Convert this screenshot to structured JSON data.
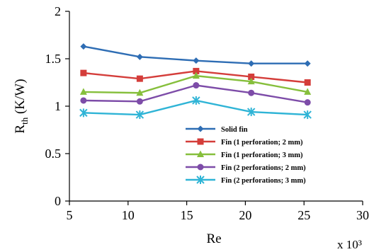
{
  "chart_data": {
    "type": "line",
    "title": "",
    "xlabel": "Re",
    "x_multiplier": "x 10³",
    "ylabel_main": "R",
    "ylabel_sub": "th",
    "ylabel_unit": " (K/W)",
    "xlim": [
      5,
      30
    ],
    "ylim": [
      0,
      2
    ],
    "xticks": [
      "5",
      "10",
      "15",
      "20",
      "25",
      "30"
    ],
    "yticks": [
      "0",
      "0.5",
      "1",
      "1.5",
      "2"
    ],
    "grid": false,
    "legend_position": "bottom-right",
    "x": [
      6.2,
      11,
      15.8,
      20.5,
      25.3
    ],
    "series": [
      {
        "name": "Solid fin",
        "color": "#2e6db4",
        "marker": "diamond",
        "values": [
          1.63,
          1.52,
          1.48,
          1.45,
          1.45
        ]
      },
      {
        "name": "Fin (1 perforation; 2 mm)",
        "color": "#d43d3a",
        "marker": "square",
        "values": [
          1.35,
          1.29,
          1.37,
          1.31,
          1.25
        ]
      },
      {
        "name": "Fin (1 perforation; 3 mm)",
        "color": "#86bf3c",
        "marker": "triangle",
        "values": [
          1.15,
          1.14,
          1.32,
          1.26,
          1.15
        ]
      },
      {
        "name": "Fin (2 perforations; 2 mm)",
        "color": "#7d4ca8",
        "marker": "circle",
        "values": [
          1.06,
          1.05,
          1.22,
          1.14,
          1.04
        ]
      },
      {
        "name": "Fin (2 perforations; 3 mm)",
        "color": "#2fb4d6",
        "marker": "asterisk",
        "values": [
          0.93,
          0.91,
          1.06,
          0.94,
          0.91
        ]
      }
    ]
  }
}
